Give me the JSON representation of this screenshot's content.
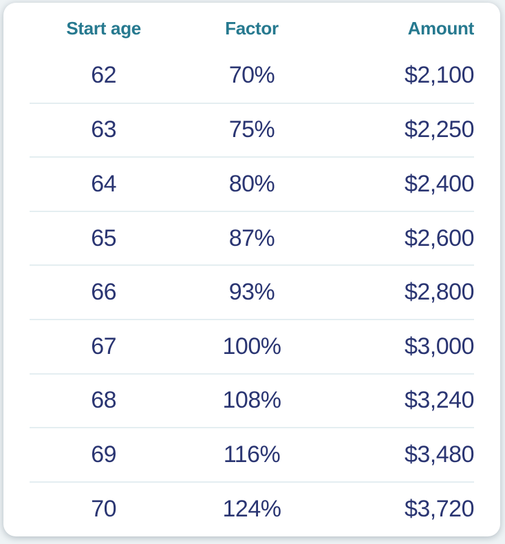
{
  "table": {
    "headers": {
      "start_age": "Start age",
      "factor": "Factor",
      "amount": "Amount"
    },
    "rows": [
      {
        "start_age": "62",
        "factor": "70%",
        "amount": "$2,100"
      },
      {
        "start_age": "63",
        "factor": "75%",
        "amount": "$2,250"
      },
      {
        "start_age": "64",
        "factor": "80%",
        "amount": "$2,400"
      },
      {
        "start_age": "65",
        "factor": "87%",
        "amount": "$2,600"
      },
      {
        "start_age": "66",
        "factor": "93%",
        "amount": "$2,800"
      },
      {
        "start_age": "67",
        "factor": "100%",
        "amount": "$3,000"
      },
      {
        "start_age": "68",
        "factor": "108%",
        "amount": "$3,240"
      },
      {
        "start_age": "69",
        "factor": "116%",
        "amount": "$3,480"
      },
      {
        "start_age": "70",
        "factor": "124%",
        "amount": "$3,720"
      }
    ],
    "column_alignment": {
      "start_age": "center",
      "factor": "center",
      "amount": "right"
    }
  },
  "colors": {
    "header_text": "#26798f",
    "body_text": "#2a3572",
    "divider": "#e4eef1",
    "card_background": "#ffffff",
    "page_background": "#eef3f5"
  }
}
